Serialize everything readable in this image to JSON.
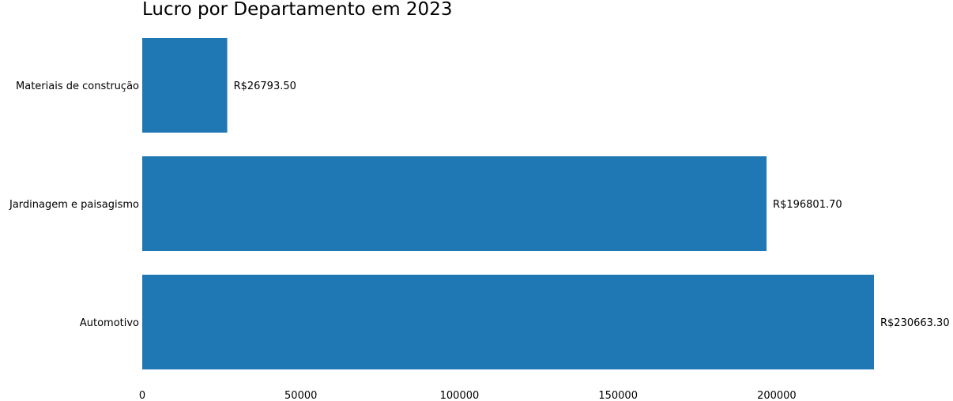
{
  "chart_data": {
    "type": "bar",
    "orientation": "horizontal",
    "title": "Lucro por Departamento em 2023",
    "xlabel": "",
    "ylabel": "",
    "categories": [
      "Materiais de construção",
      "Jardinagem e paisagismo",
      "Automotivo"
    ],
    "values": [
      26793.5,
      196801.7,
      230663.3
    ],
    "data_labels": [
      "R$26793.50",
      "R$196801.70",
      "R$230663.30"
    ],
    "xlim": [
      0,
      230663.3
    ],
    "xticks": [
      0,
      50000,
      100000,
      150000,
      200000
    ],
    "xtick_labels": [
      "0",
      "50000",
      "100000",
      "150000",
      "200000"
    ],
    "bar_color": "#1f77b4",
    "grid": false,
    "legend": "none"
  }
}
